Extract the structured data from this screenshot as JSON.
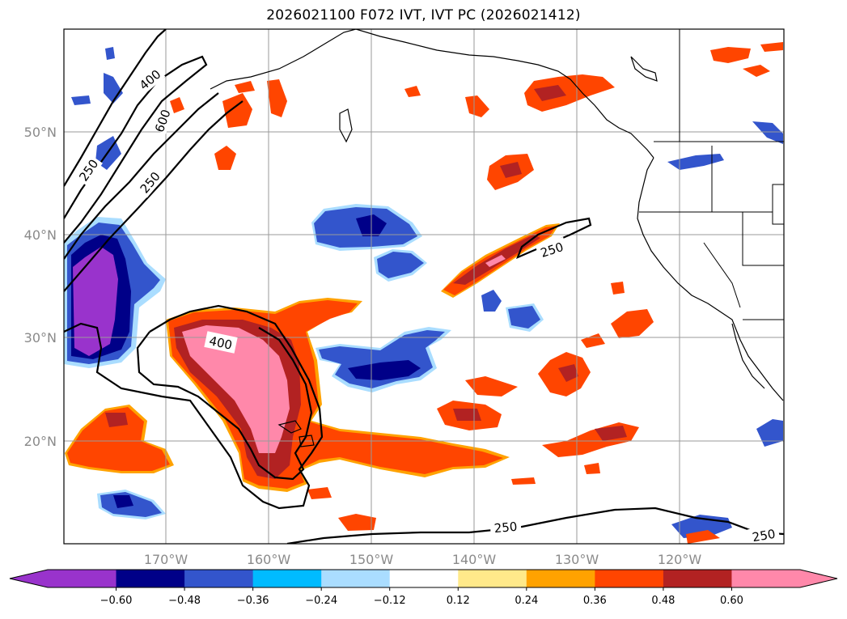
{
  "title": "2026021100 F072 IVT, IVT PC (2026021412)",
  "lat_labels": [
    "50°N",
    "40°N",
    "30°N",
    "20°N"
  ],
  "lon_labels": [
    "170°W",
    "160°W",
    "150°W",
    "140°W",
    "130°W",
    "120°W"
  ],
  "contour_labels": [
    "400",
    "600",
    "250",
    "250",
    "250",
    "400",
    "250",
    "250"
  ],
  "colorbar": {
    "ticks": [
      "−0.60",
      "−0.48",
      "−0.36",
      "−0.24",
      "−0.12",
      "0.12",
      "0.24",
      "0.36",
      "0.48",
      "0.60"
    ],
    "colors": [
      "#9933cc",
      "#000088",
      "#3355cc",
      "#00bbff",
      "#aaddff",
      "#ffffff",
      "#ffe98a",
      "#ffa200",
      "#ff4500",
      "#b22222",
      "#ff88aa"
    ]
  },
  "palette": {
    "neg_extreme": "#9933cc",
    "neg_strong": "#000088",
    "neg_mid": "#3355cc",
    "neg_weak": "#00bbff",
    "neg_faint": "#aaddff",
    "pos_faint": "#ffe98a",
    "pos_weak": "#ffa200",
    "pos_mid": "#ff4500",
    "pos_strong": "#b22222",
    "pos_extreme": "#ff88aa"
  }
}
